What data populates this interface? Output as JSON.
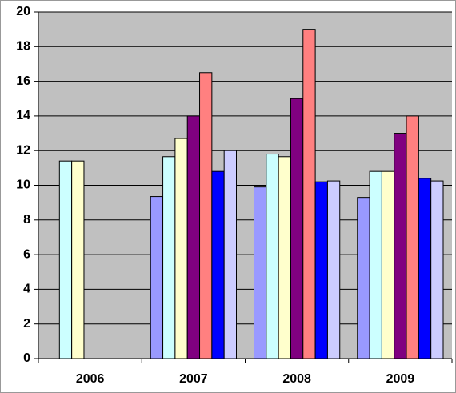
{
  "chart_data": {
    "type": "bar",
    "categories": [
      "2006",
      "2007",
      "2008",
      "2009"
    ],
    "series": [
      {
        "color": "#9999ff",
        "values": [
          null,
          9.35,
          9.9,
          9.3
        ]
      },
      {
        "color": "#ccffff",
        "values": [
          11.4,
          11.65,
          11.8,
          10.8
        ]
      },
      {
        "color": "#ffffcc",
        "values": [
          11.4,
          12.7,
          11.65,
          10.8
        ]
      },
      {
        "color": "#800080",
        "values": [
          null,
          14,
          15,
          13
        ]
      },
      {
        "color": "#ff8080",
        "values": [
          null,
          16.5,
          19,
          14
        ]
      },
      {
        "color": "#0000ff",
        "values": [
          null,
          10.8,
          10.2,
          10.4
        ]
      },
      {
        "color": "#ccccff",
        "values": [
          null,
          12,
          10.25,
          10.25
        ]
      }
    ],
    "ylim": [
      0,
      20
    ],
    "yticks": [
      0,
      2,
      4,
      6,
      8,
      10,
      12,
      14,
      16,
      18,
      20
    ],
    "grid": true,
    "plot_background": "#c0c0c0"
  }
}
